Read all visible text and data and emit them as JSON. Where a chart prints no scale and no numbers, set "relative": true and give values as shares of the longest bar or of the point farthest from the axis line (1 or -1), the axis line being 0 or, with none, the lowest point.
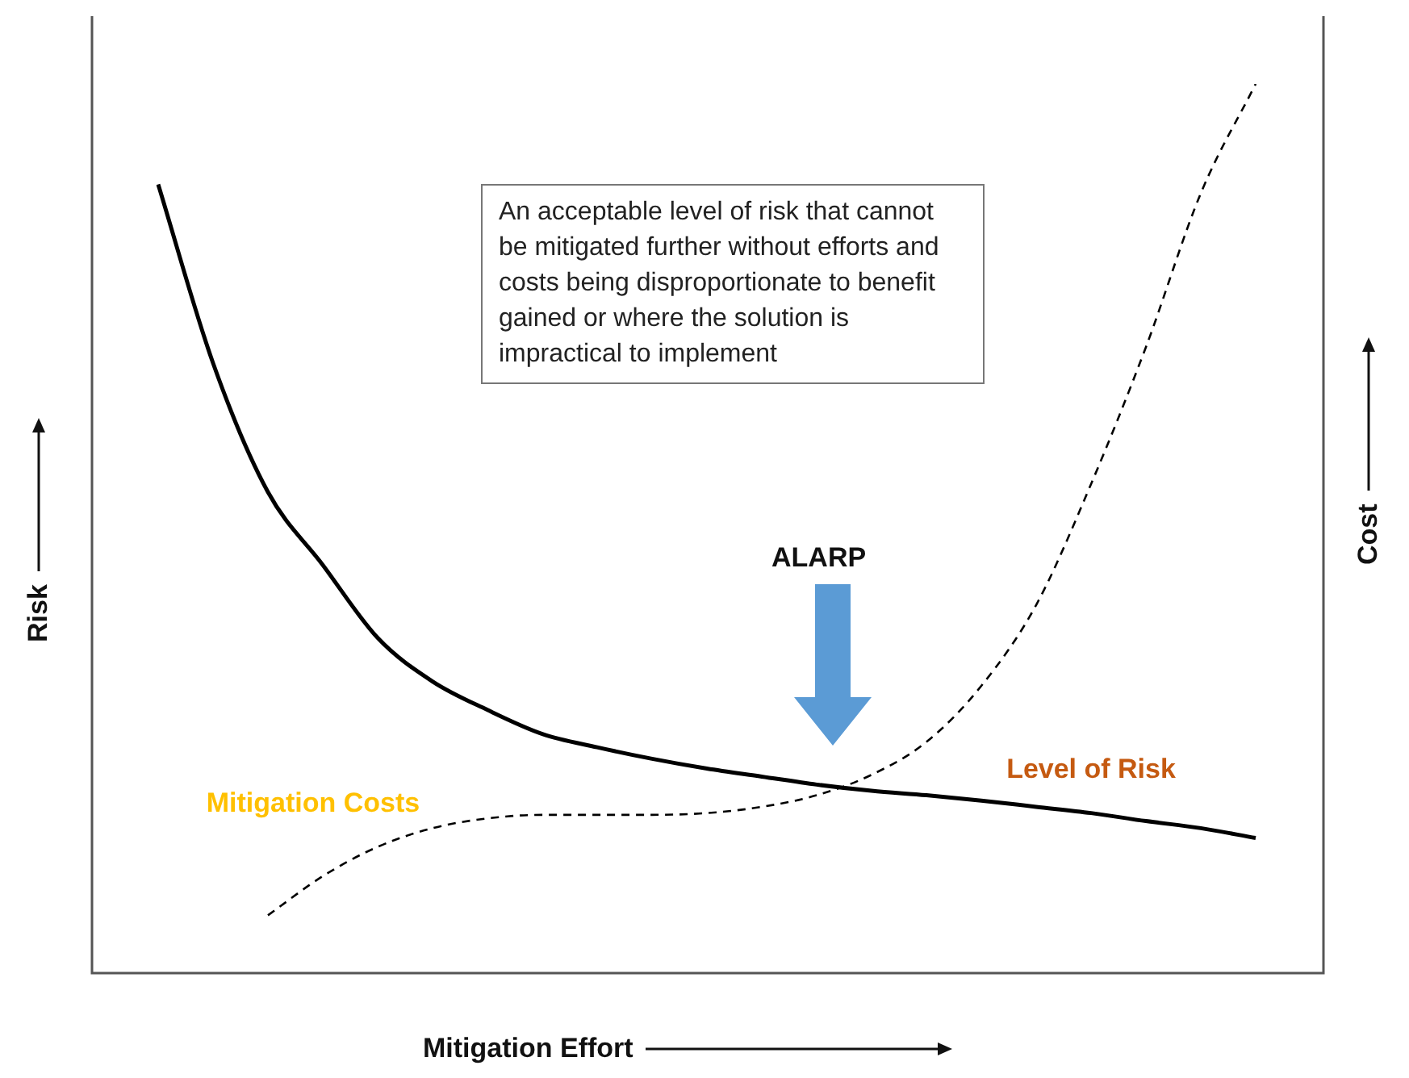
{
  "chart_data": {
    "type": "line",
    "relative": true,
    "xlabel": "Mitigation Effort",
    "ylabel": "Risk",
    "y2label": "Cost",
    "legend": false,
    "marker": "none",
    "categories": [
      null,
      null,
      null,
      null,
      null,
      null,
      null,
      null,
      null,
      null,
      null,
      null,
      null,
      null,
      null,
      null,
      null,
      null,
      null,
      null,
      null
    ],
    "series": [
      {
        "name": "Level of Risk",
        "color": "#000000",
        "line_style": "solid",
        "values": [
          0.887,
          0.686,
          0.541,
          0.459,
          0.377,
          0.328,
          0.296,
          0.269,
          0.254,
          0.241,
          0.23,
          0.221,
          0.212,
          0.205,
          0.2,
          0.194,
          0.187,
          0.18,
          0.171,
          0.163,
          0.152
        ]
      },
      {
        "name": "Mitigation Costs",
        "color": "#000000",
        "line_style": "dashed",
        "values": [
          null,
          null,
          0.065,
          0.109,
          0.142,
          0.163,
          0.174,
          0.178,
          0.178,
          0.178,
          0.18,
          0.187,
          0.2,
          0.223,
          0.26,
          0.323,
          0.414,
          0.55,
          0.704,
          0.877,
          1
        ]
      }
    ],
    "annotations": [
      "An acceptable level of risk that cannot be mitigated further without efforts and costs being disproportionate to benefit gained or where the solution is impractical to implement",
      "ALARP"
    ]
  }
}
